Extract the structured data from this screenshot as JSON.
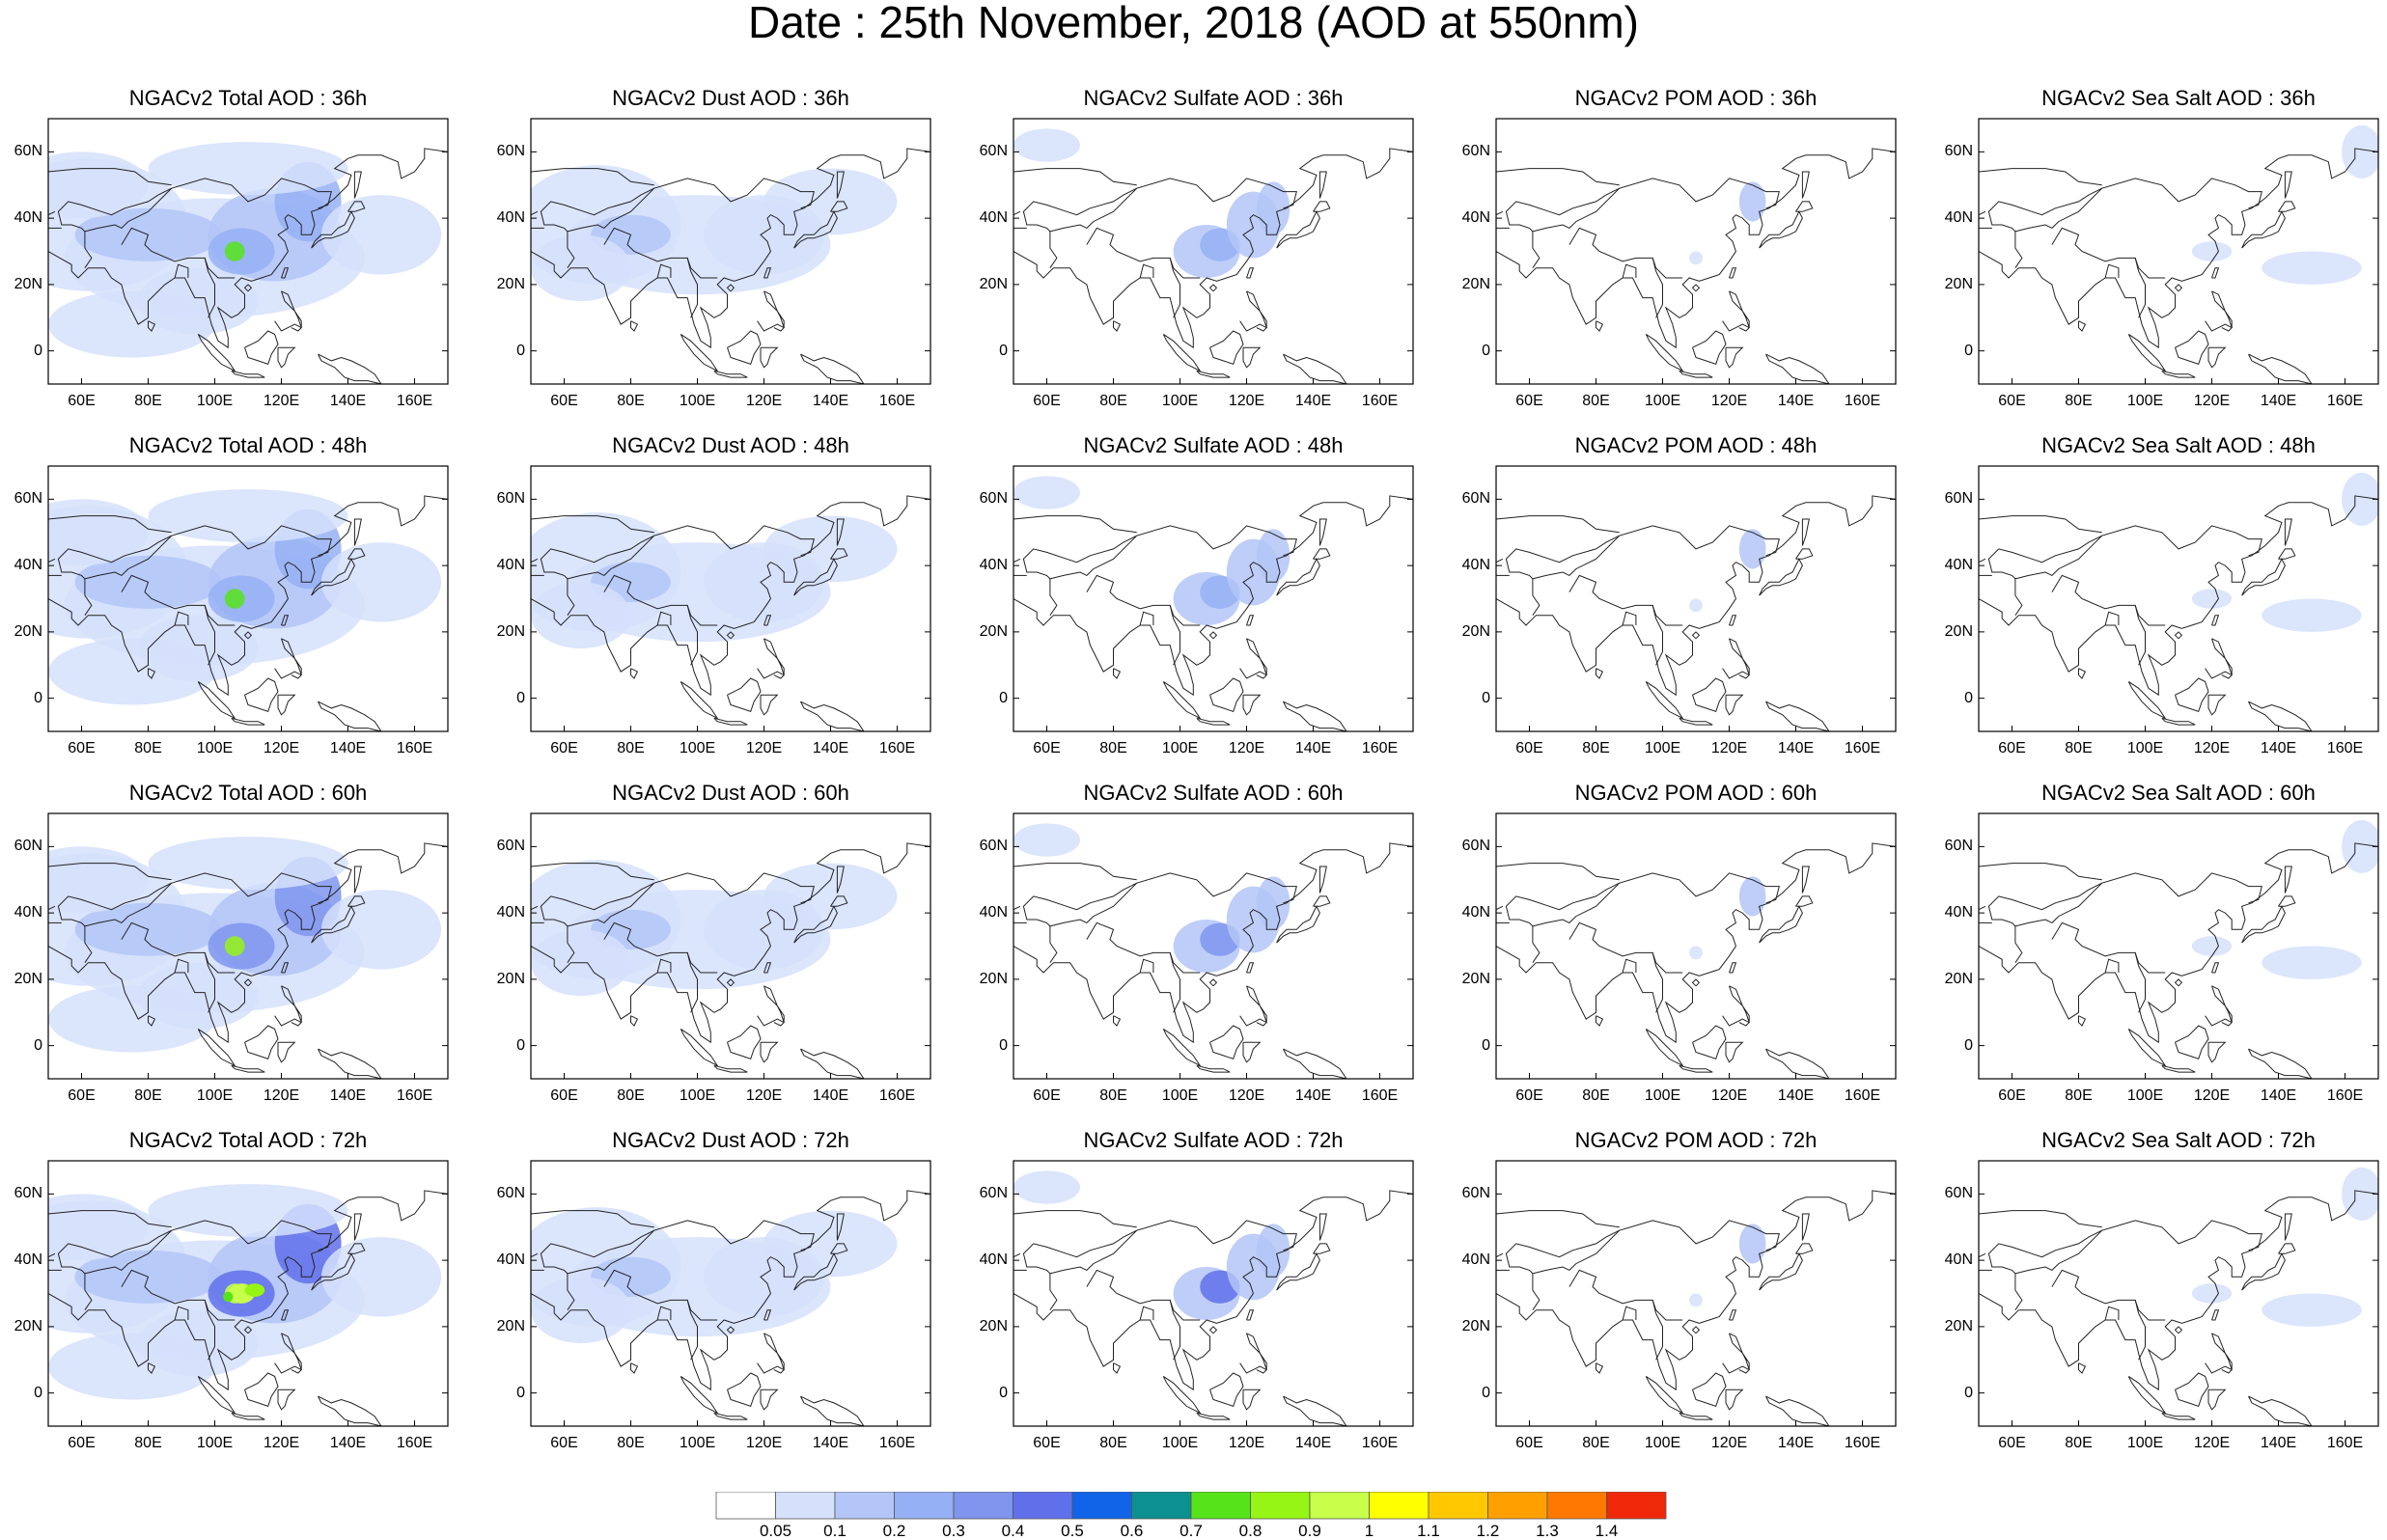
{
  "main_title": "Date : 25th November, 2018 (AOD at 550nm)",
  "panels": [
    {
      "title": "NGACv2 Total AOD : 36h",
      "species": "total",
      "hour": "36h"
    },
    {
      "title": "NGACv2 Dust AOD : 36h",
      "species": "dust",
      "hour": "36h"
    },
    {
      "title": "NGACv2 Sulfate AOD : 36h",
      "species": "sulfate",
      "hour": "36h"
    },
    {
      "title": "NGACv2 POM AOD : 36h",
      "species": "pom",
      "hour": "36h"
    },
    {
      "title": "NGACv2 Sea Salt AOD : 36h",
      "species": "seasalt",
      "hour": "36h"
    },
    {
      "title": "NGACv2 Total AOD : 48h",
      "species": "total",
      "hour": "48h"
    },
    {
      "title": "NGACv2 Dust AOD : 48h",
      "species": "dust",
      "hour": "48h"
    },
    {
      "title": "NGACv2 Sulfate AOD : 48h",
      "species": "sulfate",
      "hour": "48h"
    },
    {
      "title": "NGACv2 POM AOD : 48h",
      "species": "pom",
      "hour": "48h"
    },
    {
      "title": "NGACv2 Sea Salt AOD : 48h",
      "species": "seasalt",
      "hour": "48h"
    },
    {
      "title": "NGACv2 Total AOD : 60h",
      "species": "total",
      "hour": "60h"
    },
    {
      "title": "NGACv2 Dust AOD : 60h",
      "species": "dust",
      "hour": "60h"
    },
    {
      "title": "NGACv2 Sulfate AOD : 60h",
      "species": "sulfate",
      "hour": "60h"
    },
    {
      "title": "NGACv2 POM AOD : 60h",
      "species": "pom",
      "hour": "60h"
    },
    {
      "title": "NGACv2 Sea Salt AOD : 60h",
      "species": "seasalt",
      "hour": "60h"
    },
    {
      "title": "NGACv2 Total AOD : 72h",
      "species": "total",
      "hour": "72h"
    },
    {
      "title": "NGACv2 Dust AOD : 72h",
      "species": "dust",
      "hour": "72h"
    },
    {
      "title": "NGACv2 Sulfate AOD : 72h",
      "species": "sulfate",
      "hour": "72h"
    },
    {
      "title": "NGACv2 POM AOD : 72h",
      "species": "pom",
      "hour": "72h"
    },
    {
      "title": "NGACv2 Sea Salt  AOD : 72h",
      "species": "seasalt",
      "hour": "72h"
    }
  ],
  "map_extent": {
    "lon_min": 50,
    "lon_max": 170,
    "lat_min": -10,
    "lat_max": 70
  },
  "x_ticks": [
    "60E",
    "80E",
    "100E",
    "120E",
    "140E",
    "160E"
  ],
  "x_tick_values": [
    60,
    80,
    100,
    120,
    140,
    160
  ],
  "y_ticks": [
    "60N",
    "40N",
    "20N",
    "0"
  ],
  "y_tick_values": [
    60,
    40,
    20,
    0
  ],
  "colorbar": {
    "labels": [
      "0.05",
      "0.1",
      "0.2",
      "0.3",
      "0.4",
      "0.5",
      "0.6",
      "0.7",
      "0.8",
      "0.9",
      "1",
      "1.1",
      "1.2",
      "1.3",
      "1.4"
    ],
    "colors": [
      "#ffffff",
      "#d5e0fb",
      "#b3c6f7",
      "#95b0f4",
      "#7f95ee",
      "#6070eb",
      "#1164e8",
      "#0d9090",
      "#56e31a",
      "#96f514",
      "#c7ff4a",
      "#ffff00",
      "#ffc800",
      "#ffa000",
      "#ff7800",
      "#f0280a"
    ]
  }
}
